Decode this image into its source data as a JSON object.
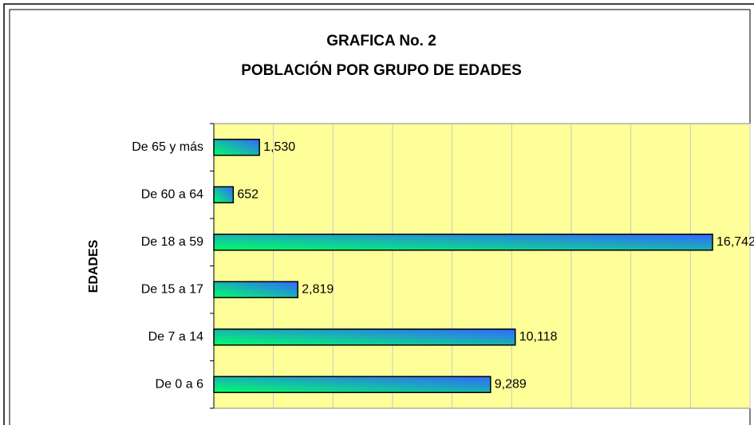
{
  "chart_data": {
    "type": "bar",
    "orientation": "horizontal",
    "title": [
      "GRAFICA No. 2",
      "POBLACIÓN POR GRUPO DE EDADES"
    ],
    "y_label": "EDADES",
    "categories": [
      "De 65 y más",
      "De 60 a 64",
      "De 18 a 59",
      "De 15 a 17",
      "De 7 a 14",
      "De 0 a 6"
    ],
    "values": [
      1530,
      652,
      16742,
      2819,
      10118,
      9289
    ],
    "value_labels": [
      "1,530",
      "652",
      "16,742",
      "2,819",
      "10,118",
      "9,289"
    ],
    "color": [
      "#00ff66",
      "#3366ff"
    ],
    "background": "#ffff99",
    "xlim": [
      0,
      18000
    ],
    "xticks": [
      0,
      2000,
      4000,
      6000,
      8000,
      10000,
      12000,
      14000,
      16000,
      18000
    ],
    "grid": true
  }
}
